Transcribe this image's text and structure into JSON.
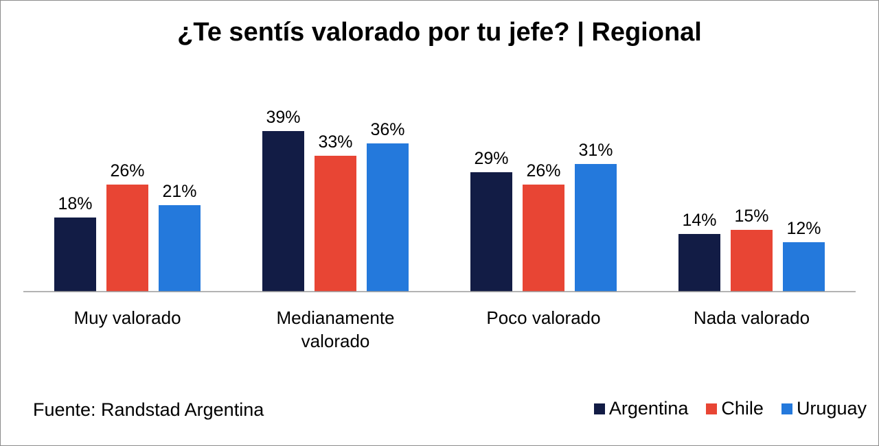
{
  "chart_data": {
    "type": "bar",
    "title": "¿Te sentís valorado por tu jefe? | Regional",
    "categories": [
      [
        "Muy valorado"
      ],
      [
        "Medianamente",
        "valorado"
      ],
      [
        "Poco valorado"
      ],
      [
        "Nada valorado"
      ]
    ],
    "series": [
      {
        "name": "Argentina",
        "color": "#121c45",
        "values": [
          18,
          39,
          29,
          14
        ]
      },
      {
        "name": "Chile",
        "color": "#e84534",
        "values": [
          26,
          33,
          26,
          15
        ]
      },
      {
        "name": "Uruguay",
        "color": "#2479dc",
        "values": [
          21,
          36,
          31,
          12
        ]
      }
    ],
    "value_suffix": "%",
    "ylim": [
      0,
      45
    ],
    "grid": false,
    "legend": "bottom-right"
  },
  "source": "Fuente: Randstad Argentina"
}
